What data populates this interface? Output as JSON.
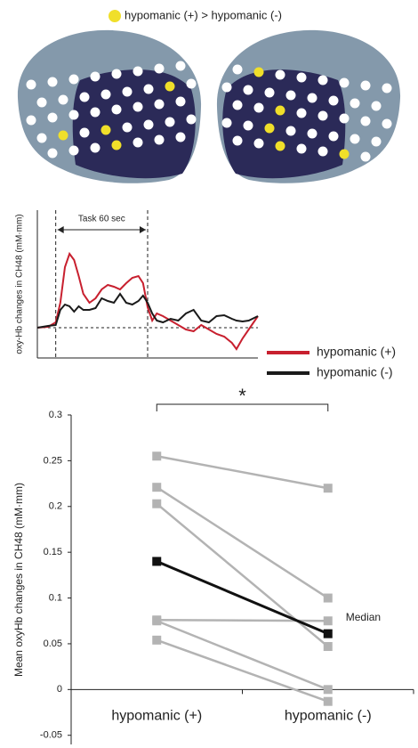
{
  "brain_legend": {
    "label": "hypomanic (+) > hypomanic (-)",
    "color": "#f0df2a"
  },
  "chart_data": [
    {
      "type": "line",
      "y_label": "oxy-Hb changes in CH48  (mM·mm)",
      "annotation": "Task 60 sec",
      "task_window": [
        0,
        60
      ],
      "x": [
        -12,
        -5,
        0,
        3,
        6,
        9,
        12,
        15,
        18,
        22,
        26,
        30,
        34,
        38,
        42,
        46,
        50,
        54,
        57,
        60,
        63,
        66,
        70,
        75,
        80,
        85,
        90,
        95,
        100,
        105,
        110,
        115,
        118,
        122,
        126,
        132
      ],
      "xlim": [
        -12,
        132
      ],
      "ylim": [
        -0.85,
        3.3
      ],
      "series": [
        {
          "name": "hypomanic (+)",
          "color": "#c8202f",
          "values": [
            0,
            0.025,
            0.15,
            0.7,
            1.7,
            2.075,
            1.9,
            1.45,
            0.95,
            0.7,
            0.825,
            1.075,
            1.2,
            1.15,
            1.075,
            1.25,
            1.4,
            1.45,
            1.25,
            0.575,
            0.2,
            0.4,
            0.325,
            0.2,
            0.075,
            -0.05,
            -0.1,
            0.075,
            -0.05,
            -0.175,
            -0.25,
            -0.425,
            -0.6,
            -0.3,
            -0.05,
            0.325
          ]
        },
        {
          "name": "hypomanic (-)",
          "color": "#1a1a1a",
          "values": [
            0,
            0.05,
            0.075,
            0.5,
            0.65,
            0.6,
            0.45,
            0.6,
            0.5,
            0.5,
            0.55,
            0.825,
            0.75,
            0.7,
            0.95,
            0.7,
            0.65,
            0.75,
            0.9,
            0.7,
            0.4,
            0.2,
            0.15,
            0.25,
            0.2,
            0.4,
            0.5,
            0.2,
            0.15,
            0.325,
            0.35,
            0.25,
            0.2,
            0.175,
            0.2,
            0.325
          ]
        }
      ]
    },
    {
      "type": "line",
      "y_label": "Mean oxyHb changes in CH48 (mM·mm)",
      "annotation": "*",
      "categories": [
        "hypomanic (+)",
        "hypomanic (-)"
      ],
      "ylim": [
        -0.06,
        0.3
      ],
      "yticks": [
        0.3,
        0.25,
        0.2,
        0.15,
        0.1,
        0.05,
        0,
        -0.05
      ],
      "series": [
        {
          "color": "#b3b3b3",
          "values": [
            0.255,
            0.22
          ]
        },
        {
          "color": "#b3b3b3",
          "values": [
            0.221,
            0.1
          ]
        },
        {
          "color": "#b3b3b3",
          "values": [
            0.203,
            0.047
          ]
        },
        {
          "color": "#b3b3b3",
          "values": [
            0.076,
            0.075
          ]
        },
        {
          "color": "#b3b3b3",
          "values": [
            0.075,
            0.0
          ]
        },
        {
          "color": "#b3b3b3",
          "values": [
            0.054,
            -0.013
          ]
        },
        {
          "name": "Median",
          "color": "#111111",
          "values": [
            0.14,
            0.061
          ]
        }
      ]
    }
  ]
}
